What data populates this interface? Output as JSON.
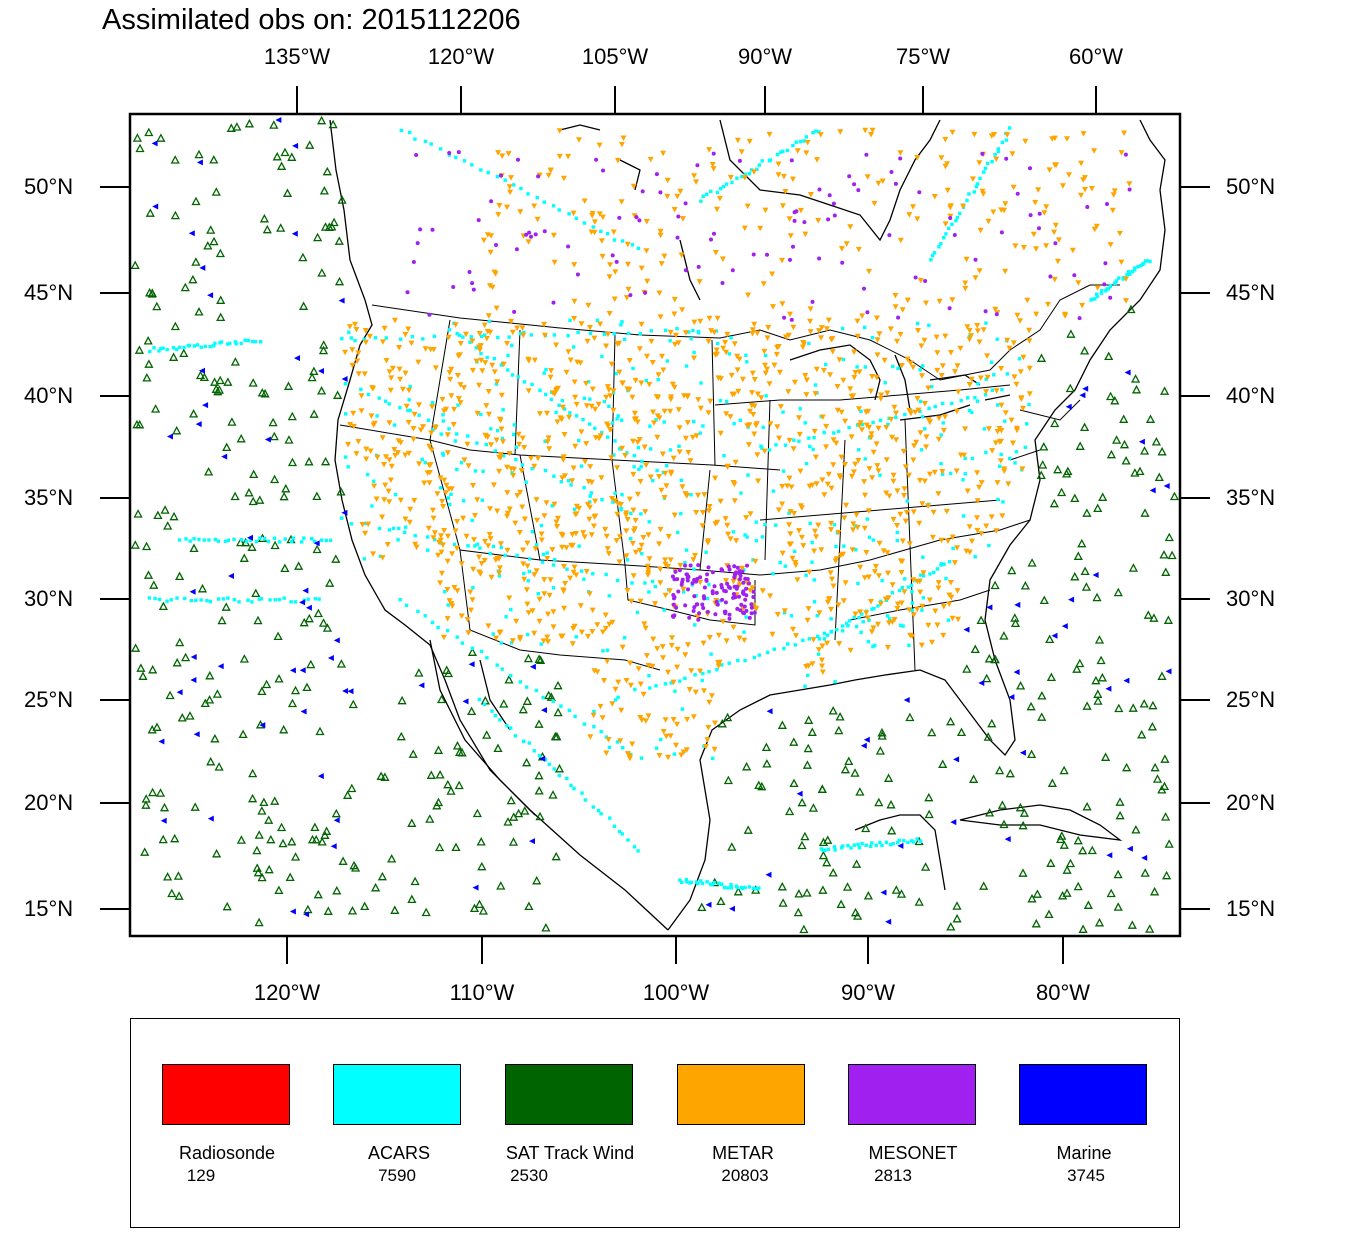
{
  "title": "Assimilated obs on: 2015112206",
  "top_lon_labels": [
    "135°W",
    "120°W",
    "105°W",
    "90°W",
    "75°W",
    "60°W"
  ],
  "bottom_lon_labels": [
    "120°W",
    "110°W",
    "100°W",
    "90°W",
    "80°W"
  ],
  "lat_labels": [
    "50°N",
    "45°N",
    "40°N",
    "35°N",
    "30°N",
    "25°N",
    "20°N",
    "15°N"
  ],
  "obs_types": [
    {
      "name": "Radiosonde",
      "count": "129",
      "color": "#ff0000"
    },
    {
      "name": "ACARS",
      "count": "7590",
      "color": "#00ffff"
    },
    {
      "name": "SAT Track Wind",
      "count": "2530",
      "color": "#006400"
    },
    {
      "name": "METAR",
      "count": "20803",
      "color": "#ffa500"
    },
    {
      "name": "MESONET",
      "count": "2813",
      "color": "#a020f0"
    },
    {
      "name": "Marine",
      "count": "3745",
      "color": "#0000ff"
    }
  ]
}
